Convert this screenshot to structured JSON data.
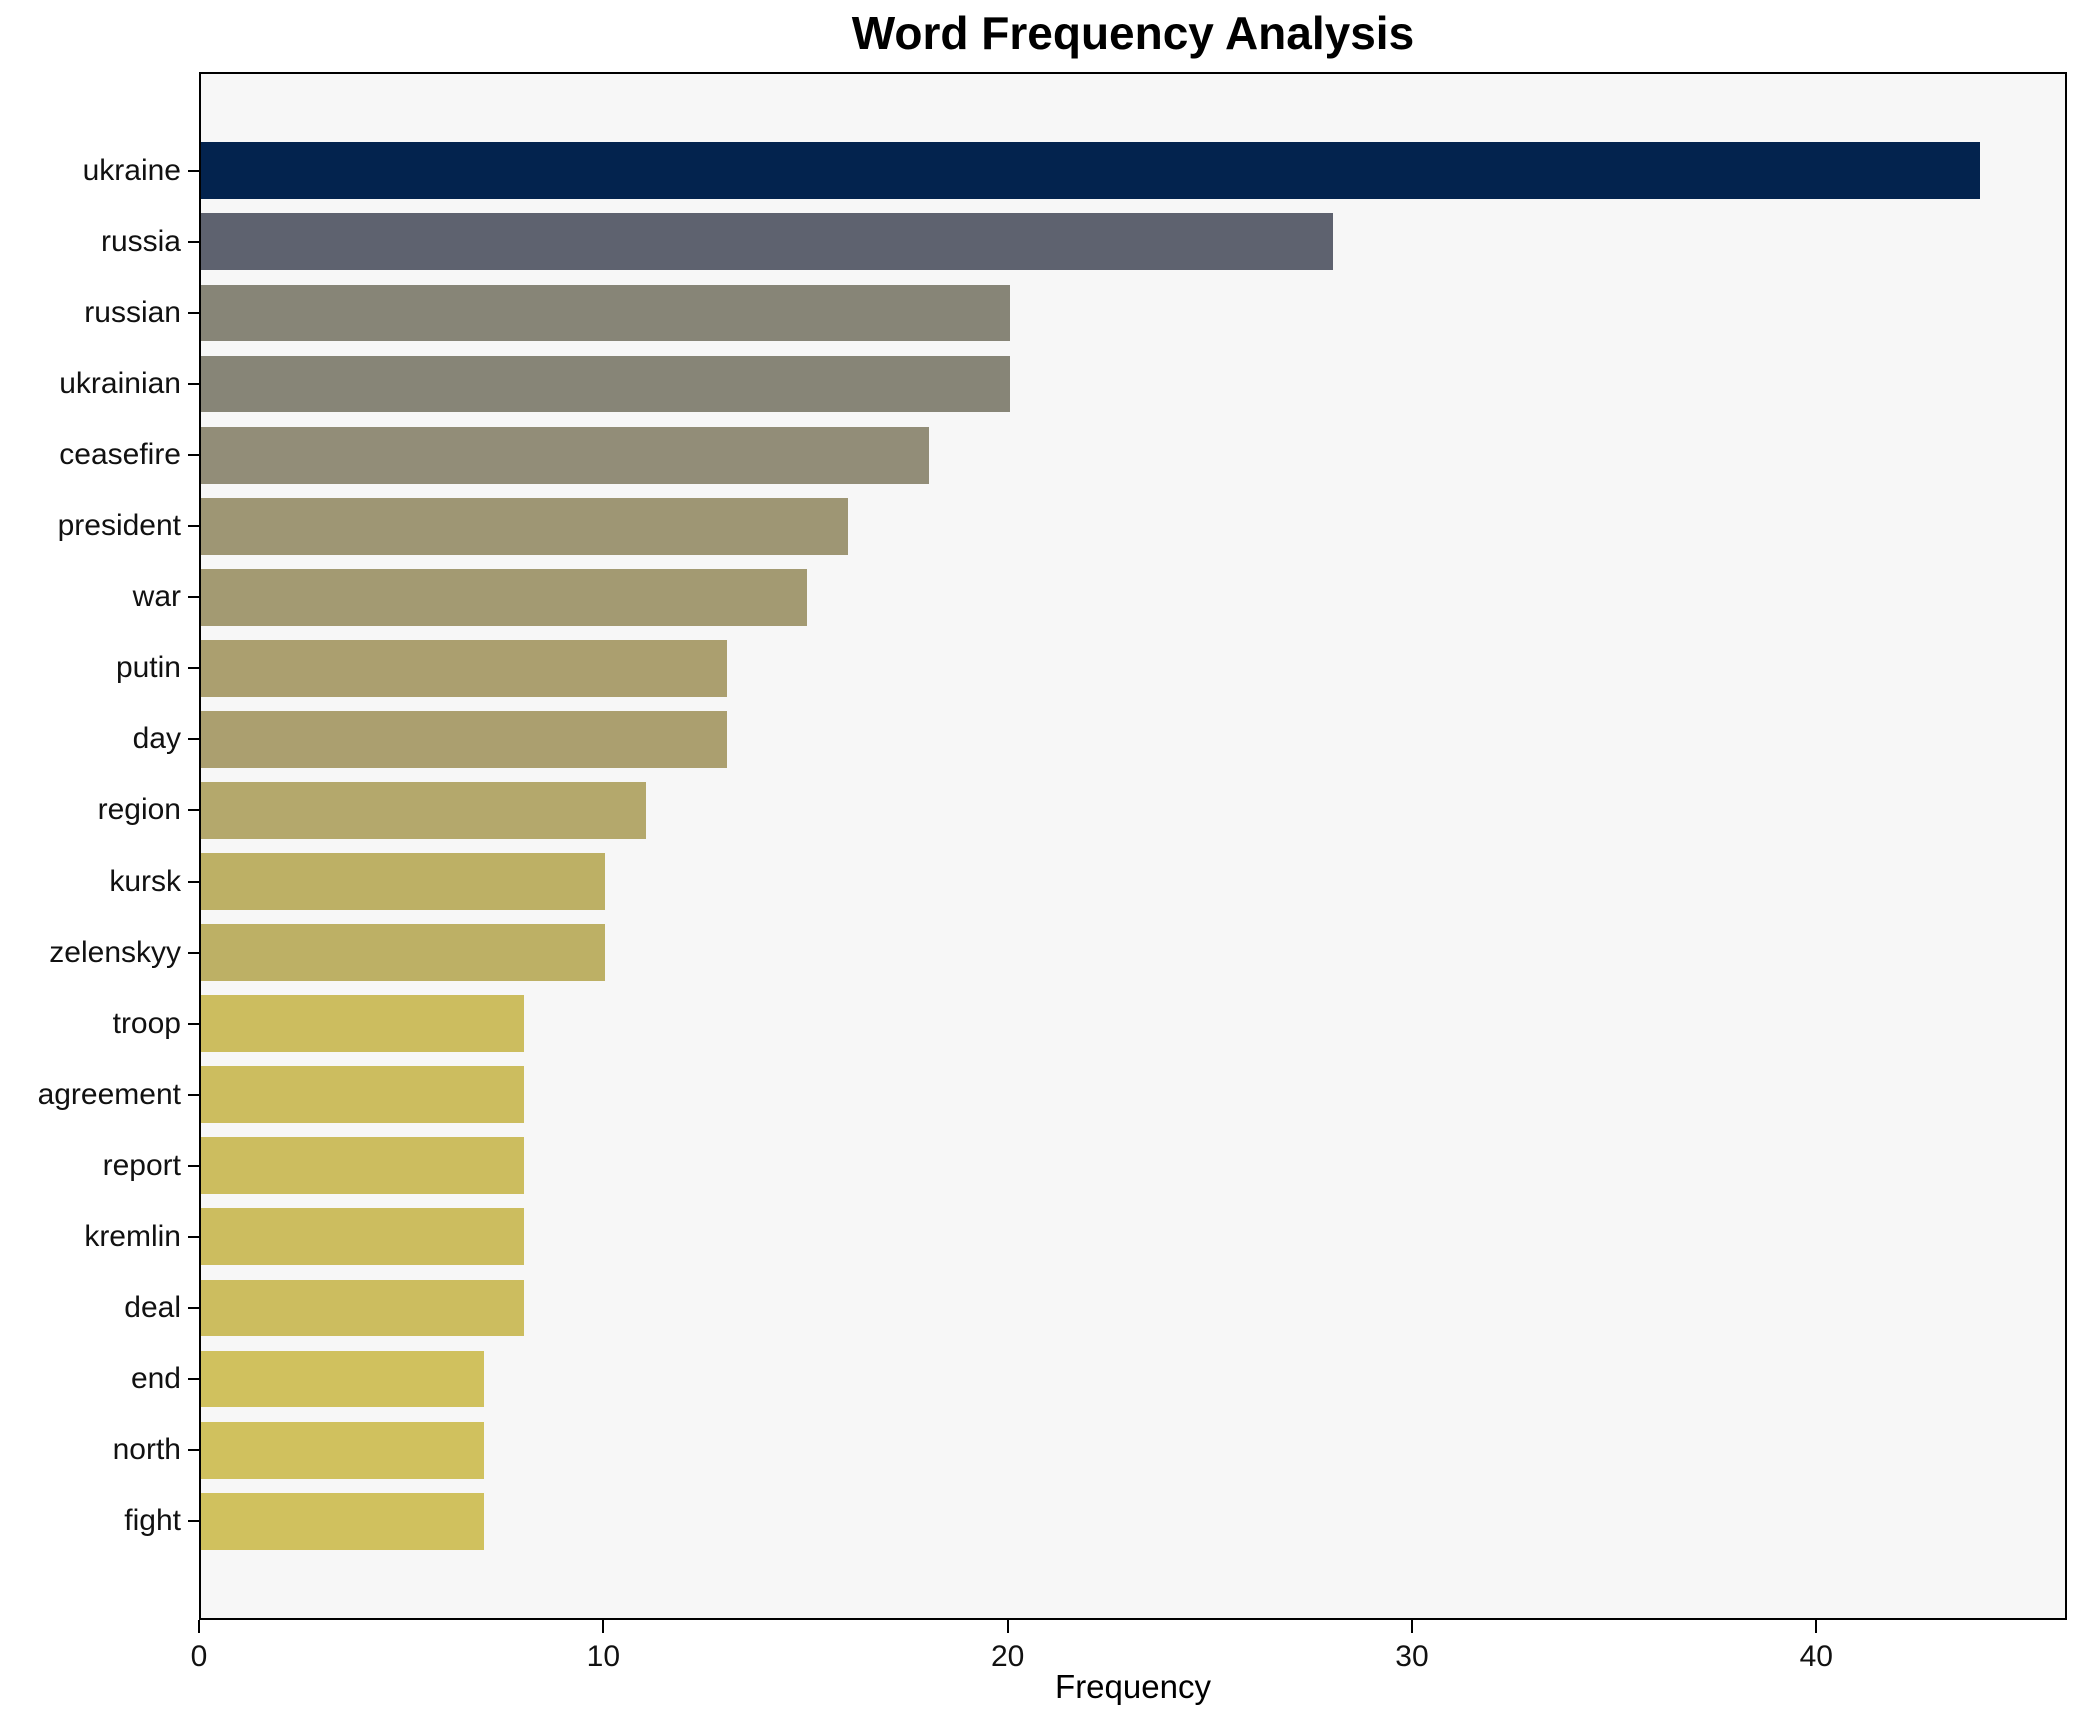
{
  "chart_data": {
    "type": "bar",
    "orientation": "horizontal",
    "title": "Word Frequency Analysis",
    "xlabel": "Frequency",
    "ylabel": "",
    "categories": [
      "ukraine",
      "russia",
      "russian",
      "ukrainian",
      "ceasefire",
      "president",
      "war",
      "putin",
      "day",
      "region",
      "kursk",
      "zelenskyy",
      "troop",
      "agreement",
      "report",
      "kremlin",
      "deal",
      "end",
      "north",
      "fight"
    ],
    "values": [
      44,
      28,
      20,
      20,
      18,
      16,
      15,
      13,
      13,
      11,
      10,
      10,
      8,
      8,
      8,
      8,
      8,
      7,
      7,
      7
    ],
    "bar_colors": [
      "#03234e",
      "#5e626f",
      "#878577",
      "#878577",
      "#928d78",
      "#9e9674",
      "#a39a72",
      "#ab9f6f",
      "#ab9f6f",
      "#b4a86c",
      "#bdb065",
      "#bdb065",
      "#ccbd5f",
      "#ccbd5f",
      "#ccbd5f",
      "#ccbd5f",
      "#ccbd5f",
      "#d0c15e",
      "#d0c15e",
      "#d0c15e"
    ],
    "xlim": [
      0,
      46.2
    ],
    "x_ticks": [
      0,
      10,
      20,
      30,
      40
    ],
    "grid": false,
    "legend": null,
    "plot_bg": "#f7f7f7",
    "fig_bg": "#ffffff",
    "spine_color": "#000000",
    "bar_width_fraction": 0.8
  }
}
